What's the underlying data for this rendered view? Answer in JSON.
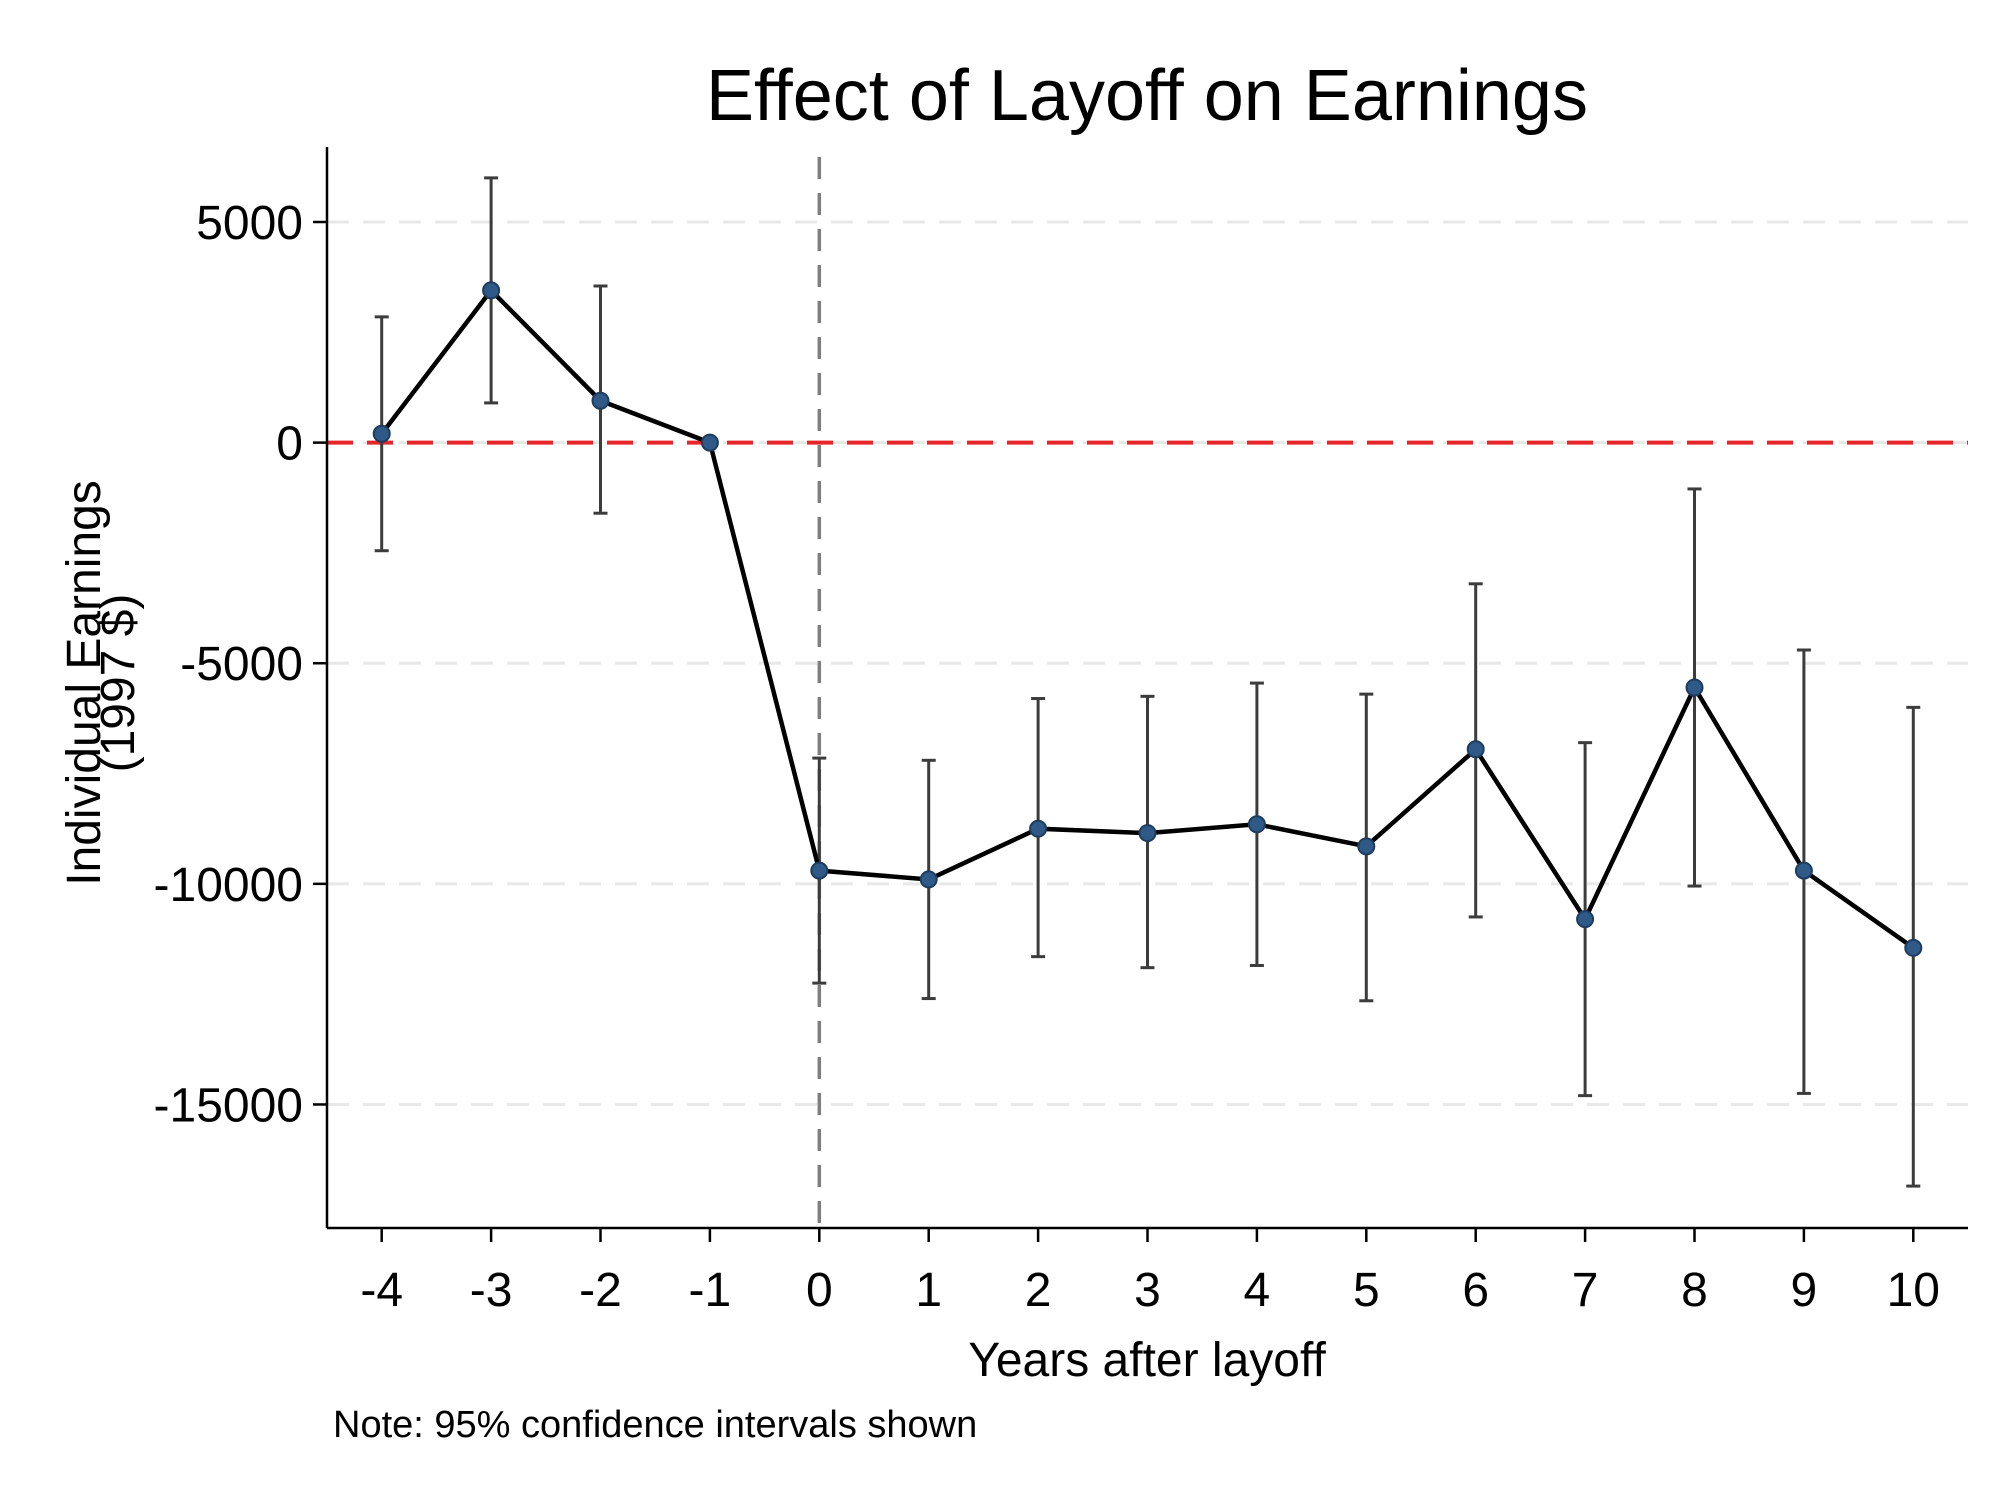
{
  "chart_data": {
    "type": "line",
    "title": "Effect of Layoff on Earnings",
    "xlabel": "Years after layoff",
    "ylabel_lines": [
      "Individual Earnings",
      "(1997 $)"
    ],
    "note": "Note: 95% confidence intervals shown",
    "x": [
      -4,
      -3,
      -2,
      -1,
      0,
      1,
      2,
      3,
      4,
      5,
      6,
      7,
      8,
      9,
      10
    ],
    "x_ticks": [
      "-4",
      "-3",
      "-2",
      "-1",
      "0",
      "1",
      "2",
      "3",
      "4",
      "5",
      "6",
      "7",
      "8",
      "9",
      "10"
    ],
    "series": [
      {
        "values": [
          200,
          3450,
          950,
          0,
          -9700,
          -9900,
          -8750,
          -8850,
          -8650,
          -9150,
          -6950,
          -10800,
          -5550,
          -9700,
          -11450
        ],
        "ci_lower": [
          -2450,
          900,
          -1600,
          0,
          -12250,
          -12600,
          -11650,
          -11900,
          -11850,
          -12650,
          -10750,
          -14800,
          -10050,
          -14750,
          -16850
        ],
        "ci_upper": [
          2850,
          6000,
          3550,
          0,
          -7150,
          -7200,
          -5800,
          -5750,
          -5450,
          -5700,
          -3200,
          -6800,
          -1050,
          -4700,
          -6000
        ]
      }
    ],
    "y_ticks": [
      "5000",
      "0",
      "-5000",
      "-10000",
      "-15000"
    ],
    "y_tick_values": [
      5000,
      0,
      -5000,
      -10000,
      -15000
    ],
    "ylim": [
      -17800,
      6700
    ],
    "xlim": [
      -4.5,
      10.5
    ],
    "reference_lines": [
      {
        "axis": "y",
        "value": 0,
        "style": "dashed",
        "color": "#e8262a"
      },
      {
        "axis": "x",
        "value": 0,
        "style": "dashed",
        "color": "#7f7f7f"
      }
    ],
    "grid": "horizontal",
    "colors": {
      "line": "#000000",
      "marker": "#2f5a88",
      "error_bar": "#3c3c3c",
      "grid": "#e8e8e8"
    }
  }
}
